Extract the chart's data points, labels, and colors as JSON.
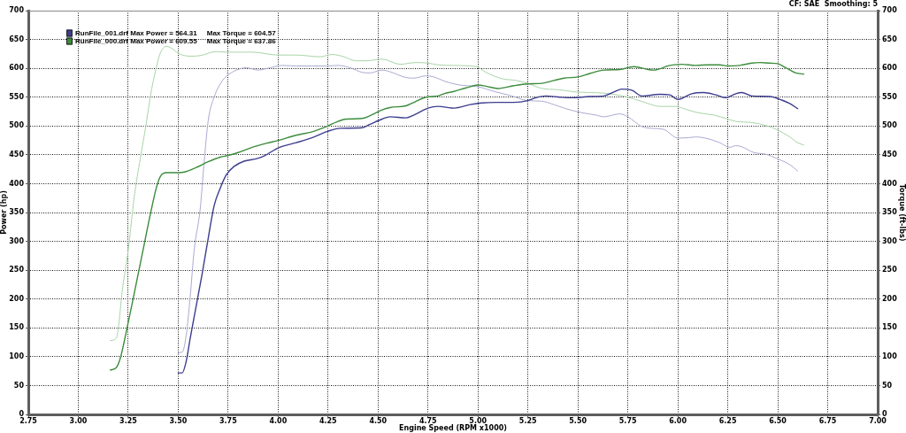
{
  "chart_data": {
    "type": "line",
    "annotations": [
      "CF: SAE  Smoothing: 5"
    ],
    "xlabel": "Engine Speed (RPM x1000)",
    "ylabel": "Power (hp)",
    "y2label": "Torque (ft-lbs)",
    "xlim": [
      2.75,
      7
    ],
    "xticks": [
      2.75,
      {
        "value": 3,
        "label": "3.00"
      },
      3.25,
      {
        "value": 3.5,
        "label": "3.50"
      },
      3.75,
      {
        "value": 4,
        "label": "4.00"
      },
      4.25,
      {
        "value": 4.5,
        "label": "4.50"
      },
      4.75,
      {
        "value": 5,
        "label": "5.00"
      },
      5.25,
      {
        "value": 5.5,
        "label": "5.50"
      },
      5.75,
      {
        "value": 6,
        "label": "6.00"
      },
      6.25,
      {
        "value": 6.5,
        "label": "6.50"
      },
      6.75,
      {
        "value": 7,
        "label": "7.00"
      }
    ],
    "ylim": [
      0,
      700
    ],
    "yticks": [
      0,
      50,
      100,
      150,
      200,
      250,
      300,
      350,
      400,
      450,
      500,
      550,
      600,
      650,
      700
    ],
    "y2lim": [
      0,
      700
    ],
    "y2ticks": [
      0,
      50,
      100,
      150,
      200,
      250,
      300,
      350,
      400,
      450,
      500,
      550,
      600,
      650,
      700
    ],
    "grid": true,
    "legend": "top left",
    "marker": "none",
    "line_style": "solid",
    "series": [
      {
        "name": "RunFile_001.drf Max Power = 564.31     Max Torque = 604.57",
        "color": "#3d3d8f",
        "x": [
          3.5,
          3.52,
          3.54,
          3.56,
          3.59,
          3.62,
          3.65,
          3.68,
          3.71,
          3.74,
          3.78,
          3.83,
          3.89,
          3.93,
          4.0,
          4.09,
          4.18,
          4.25,
          4.31,
          4.42,
          4.46,
          4.52,
          4.56,
          4.64,
          4.68,
          4.75,
          4.8,
          4.88,
          4.96,
          5.02,
          5.09,
          5.18,
          5.25,
          5.29,
          5.34,
          5.41,
          5.47,
          5.56,
          5.63,
          5.68,
          5.72,
          5.77,
          5.82,
          5.91,
          5.96,
          6.0,
          6.07,
          6.13,
          6.19,
          6.24,
          6.29,
          6.32,
          6.37,
          6.46,
          6.52,
          6.56,
          6.6
        ],
        "values": [
          72,
          72,
          92,
          132,
          188,
          244,
          305,
          362,
          392,
          415,
          430,
          439,
          443,
          448,
          462,
          471,
          481,
          491,
          496,
          497,
          503,
          512,
          516,
          514,
          519,
          531,
          534,
          531,
          537,
          540,
          541,
          541,
          544,
          549,
          552,
          550,
          549,
          551,
          552,
          559,
          564,
          562,
          552,
          555,
          554,
          546,
          556,
          558,
          554,
          549,
          556,
          558,
          552,
          551,
          545,
          539,
          530
        ]
      },
      {
        "name": "RunFile_000.drf Max Power = 609.55     Max Torque = 637.86",
        "color": "#3c8c3c",
        "x": [
          3.16,
          3.19,
          3.21,
          3.24,
          3.27,
          3.3,
          3.33,
          3.36,
          3.39,
          3.41,
          3.44,
          3.5,
          3.54,
          3.59,
          3.65,
          3.71,
          3.75,
          3.8,
          3.87,
          3.94,
          4.0,
          4.09,
          4.17,
          4.22,
          4.3,
          4.34,
          4.42,
          4.46,
          4.52,
          4.56,
          4.64,
          4.68,
          4.74,
          4.8,
          4.83,
          4.88,
          4.94,
          5.0,
          5.04,
          5.1,
          5.18,
          5.25,
          5.32,
          5.38,
          5.43,
          5.5,
          5.56,
          5.63,
          5.71,
          5.78,
          5.85,
          5.88,
          5.96,
          6.02,
          6.09,
          6.15,
          6.21,
          6.25,
          6.31,
          6.37,
          6.41,
          6.46,
          6.5,
          6.54,
          6.59,
          6.63
        ],
        "values": [
          77,
          81,
          97,
          143,
          193,
          244,
          295,
          346,
          392,
          412,
          419,
          419,
          421,
          428,
          438,
          446,
          449,
          454,
          463,
          470,
          475,
          484,
          490,
          496,
          508,
          512,
          513,
          518,
          528,
          532,
          535,
          541,
          550,
          552,
          556,
          560,
          566,
          571,
          569,
          565,
          570,
          573,
          574,
          579,
          583,
          585,
          591,
          597,
          598,
          603,
          598,
          597,
          605,
          607,
          605,
          606,
          606,
          604,
          605,
          609,
          610,
          609,
          608,
          601,
          592,
          590
        ]
      },
      {
        "color": "#aaaad2",
        "axis": "y2",
        "x": [
          3.5,
          3.52,
          3.54,
          3.56,
          3.58,
          3.61,
          3.63,
          3.65,
          3.68,
          3.72,
          3.76,
          3.8,
          3.84,
          3.9,
          3.96,
          4.02,
          4.09,
          4.17,
          4.24,
          4.3,
          4.36,
          4.42,
          4.46,
          4.52,
          4.56,
          4.64,
          4.68,
          4.74,
          4.78,
          4.83,
          4.88,
          4.91,
          5.0,
          5.09,
          5.16,
          5.25,
          5.32,
          5.38,
          5.44,
          5.52,
          5.59,
          5.63,
          5.71,
          5.75,
          5.82,
          5.87,
          5.93,
          6.0,
          6.06,
          6.09,
          6.15,
          6.21,
          6.26,
          6.29,
          6.32,
          6.38,
          6.44,
          6.5,
          6.56,
          6.6
        ],
        "values": [
          107,
          108,
          137,
          204,
          285,
          356,
          438,
          509,
          550,
          578,
          591,
          598,
          601,
          597,
          601,
          605,
          604,
          604,
          604,
          605,
          601,
          593,
          592,
          597,
          594,
          584,
          583,
          587,
          585,
          578,
          573,
          571,
          568,
          559,
          553,
          544,
          543,
          537,
          530,
          523,
          519,
          516,
          521,
          516,
          499,
          496,
          494,
          479,
          480,
          481,
          478,
          471,
          463,
          466,
          464,
          454,
          451,
          443,
          433,
          422
        ]
      },
      {
        "color": "#a8d4a8",
        "axis": "y2",
        "x": [
          3.16,
          3.19,
          3.2,
          3.22,
          3.25,
          3.28,
          3.31,
          3.34,
          3.36,
          3.39,
          3.41,
          3.44,
          3.47,
          3.5,
          3.56,
          3.61,
          3.69,
          3.75,
          3.87,
          4.0,
          4.09,
          4.21,
          4.27,
          4.33,
          4.39,
          4.44,
          4.52,
          4.61,
          4.69,
          4.75,
          4.8,
          4.88,
          4.99,
          5.04,
          5.12,
          5.19,
          5.25,
          5.32,
          5.4,
          5.49,
          5.56,
          5.63,
          5.71,
          5.78,
          5.85,
          5.91,
          5.99,
          6.04,
          6.1,
          6.18,
          6.25,
          6.29,
          6.37,
          6.44,
          6.5,
          6.56,
          6.6,
          6.63
        ],
        "values": [
          128,
          132,
          148,
          214,
          285,
          377,
          443,
          504,
          550,
          601,
          626,
          638,
          634,
          626,
          621,
          622,
          629,
          628,
          628,
          623,
          623,
          620,
          624,
          620,
          613,
          613,
          616,
          607,
          610,
          609,
          606,
          605,
          603,
          593,
          582,
          579,
          574,
          565,
          563,
          559,
          558,
          557,
          553,
          547,
          539,
          534,
          534,
          529,
          523,
          519,
          512,
          508,
          506,
          501,
          493,
          481,
          471,
          467
        ]
      }
    ]
  }
}
